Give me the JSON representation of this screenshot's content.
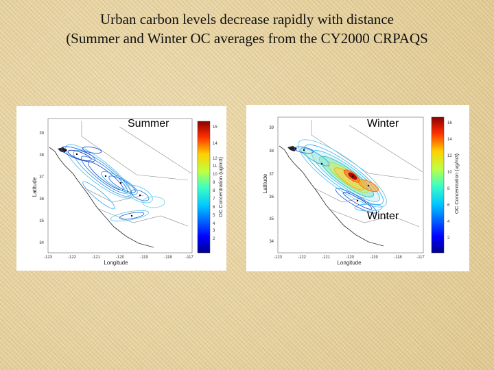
{
  "slide": {
    "title_line1": "Urban carbon levels decrease rapidly with distance",
    "title_line2": "(Summer and Winter OC averages from the CY2000 CRPAQS"
  },
  "panels": [
    {
      "season_label": "Summer",
      "x_ticks": [
        "-123",
        "-122",
        "-121",
        "-120",
        "-119",
        "-118",
        "-117"
      ],
      "y_ticks": [
        "39",
        "38",
        "37",
        "36",
        "35",
        "34"
      ],
      "xlabel": "Longitude",
      "ylabel": "Latitude",
      "colorbar_label": "OC Concentration (ug/m3)",
      "colorbar_ticks": [
        "15",
        "14",
        "12",
        "11",
        "10",
        "9",
        "8",
        "7",
        "6",
        "5",
        "4",
        "3",
        "2"
      ]
    },
    {
      "season_label": "Winter",
      "season_label_overlay": "Winter",
      "x_ticks": [
        "-123",
        "-122",
        "-121",
        "-120",
        "-119",
        "-118",
        "-117"
      ],
      "y_ticks": [
        "39",
        "38",
        "37",
        "36",
        "35",
        "34"
      ],
      "xlabel": "Longitude",
      "ylabel": "Latitude",
      "colorbar_label": "OC Concentration (ug/m3)",
      "colorbar_ticks": [
        "16",
        "14",
        "12",
        "10",
        "8",
        "6",
        "4",
        "2"
      ]
    }
  ],
  "colors": {
    "background": "#e6cf98",
    "colormap_top": "#8b0000",
    "colormap_bottom": "#00008b"
  }
}
